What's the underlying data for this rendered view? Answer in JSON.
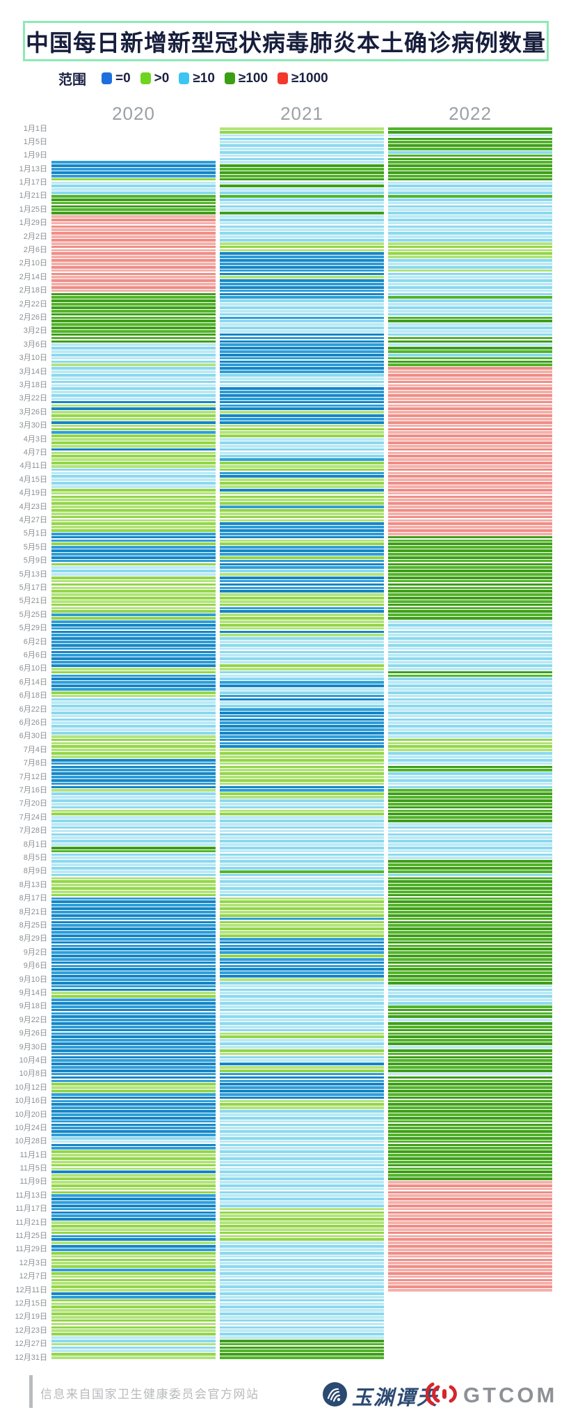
{
  "title": "中国每日新增新型冠状病毒肺炎本土确诊病例数量",
  "legend": {
    "label": "范围",
    "items": [
      {
        "code": "0",
        "label": "=0"
      },
      {
        "code": "1",
        "label": ">0"
      },
      {
        "code": "2",
        "label": "≥10"
      },
      {
        "code": "3",
        "label": "≥100"
      },
      {
        "code": "4",
        "label": "≥1000"
      }
    ]
  },
  "colors": {
    "legend_chips": {
      "0": "#1d6fdd",
      "1": "#6fd41e",
      "2": "#3cc5f2",
      "3": "#3b9f13",
      "4": "#f2392b"
    },
    "stripes": {
      "0": [
        "#2e9ed8",
        "#1585c5"
      ],
      "1": [
        "#b2e37c",
        "#94d549"
      ],
      "2": [
        "#bce9f4",
        "#8ad9ef"
      ],
      "3": [
        "#52b42a",
        "#3f9e1b"
      ],
      "4": [
        "#f5b0ab",
        "#ef8d86"
      ]
    },
    "title_text": "#171e3c",
    "title_border": "#8ceab5",
    "year_header": "#9aa0a4",
    "axis_label": "#8b9094",
    "footer_text": "#b7babc",
    "brand_navy": "#2b4a72",
    "brand_red": "#d6252c",
    "brand_gray": "#8d9196"
  },
  "chart_data": {
    "type": "heatmap",
    "description": "Daily new local confirmed COVID-19 cases in China, one row per calendar day, one column per year. Cell codes: . = no data, 0 means =0 cases, 1 means >0, 2 means ≥10, 3 means ≥100, 4 means ≥1000.",
    "code_meanings": {
      ".": "no data",
      "0": "=0",
      "1": ">0",
      "2": "≥10",
      "3": "≥100",
      "4": "≥1000"
    },
    "axis_labels": [
      "1月1日",
      "1月5日",
      "1月9日",
      "1月13日",
      "1月17日",
      "1月21日",
      "1月25日",
      "1月29日",
      "2月2日",
      "2月6日",
      "2月10日",
      "2月14日",
      "2月18日",
      "2月22日",
      "2月26日",
      "3月2日",
      "3月6日",
      "3月10日",
      "3月14日",
      "3月18日",
      "3月22日",
      "3月26日",
      "3月30日",
      "4月3日",
      "4月7日",
      "4月11日",
      "4月15日",
      "4月19日",
      "4月23日",
      "4月27日",
      "5月1日",
      "5月5日",
      "5月9日",
      "5月13日",
      "5月17日",
      "5月21日",
      "5月25日",
      "5月29日",
      "6月2日",
      "6月6日",
      "6月10日",
      "6月14日",
      "6月18日",
      "6月22日",
      "6月26日",
      "6月30日",
      "7月4日",
      "7月8日",
      "7月12日",
      "7月16日",
      "7月20日",
      "7月24日",
      "7月28日",
      "8月1日",
      "8月5日",
      "8月9日",
      "8月13日",
      "8月17日",
      "8月21日",
      "8月25日",
      "8月29日",
      "9月2日",
      "9月6日",
      "9月10日",
      "9月14日",
      "9月18日",
      "9月22日",
      "9月26日",
      "9月30日",
      "10月4日",
      "10月8日",
      "10月12日",
      "10月16日",
      "10月20日",
      "10月24日",
      "10月28日",
      "11月1日",
      "11月5日",
      "11月9日",
      "11月13日",
      "11月17日",
      "11月21日",
      "11月25日",
      "11月29日",
      "12月3日",
      "12月7日",
      "12月11日",
      "12月15日",
      "12月19日",
      "12月23日",
      "12月27日",
      "12月31日"
    ],
    "years": [
      {
        "label": "2020",
        "months": [
          "..........000001222233333344444",
          "4444444444444444443333333333",
          "3333322222212222222222010111011",
          "011110111112222221111111111111",
          "0001000001222111111111110100000",
          "000000000110000011222222222221",
          "1111110000000001222221122222222",
          "2332222222111111000000000000000",
          "000000000000011000000000000000",
          "0000000000111000000000000022001",
          "111110111111000000001111001001",
          "1111011111100111111111112212211"
        ]
      },
      {
        "label": "2021",
        "months": [
          "1122222222233333232232222322222",
          "2221110000000100000022222022",
          "2200000000000022220000000100011",
          "112222220111001110111101111000",
          "0011000100021000001111001111101",
          "222222221122200220022000000000",
          "0001111111111100112221122222222",
          "2222222232222222111111011111000",
          "001000000122222222222222211222",
          "1122011000000001112222222222222",
          "222222222222222211111111112222",
          "2222222222222222222222222333333"
        ]
      },
      {
        "label": "2022",
        "months": [
          "3323333233333333222232222222222",
          "2221111122212222222322222332",
          "2223323323334444444444444444444",
          "444444444444444444444444444444",
          "4333333333333333333333333322222",
          "222222222233222222222222222222",
          "1111222233222223333333333222222",
          "2222233332333333333333333333333",
          "333333333332222223333233333332",
          "3333333233333333333333333333333",
          "333333334444444444444444444444",
          "44444444444...................."
        ]
      }
    ]
  },
  "footer": {
    "source": "信息来自国家卫生健康委员会官方网站",
    "brand_left": "玉渊谭天",
    "brand_right": "GTCOM"
  }
}
